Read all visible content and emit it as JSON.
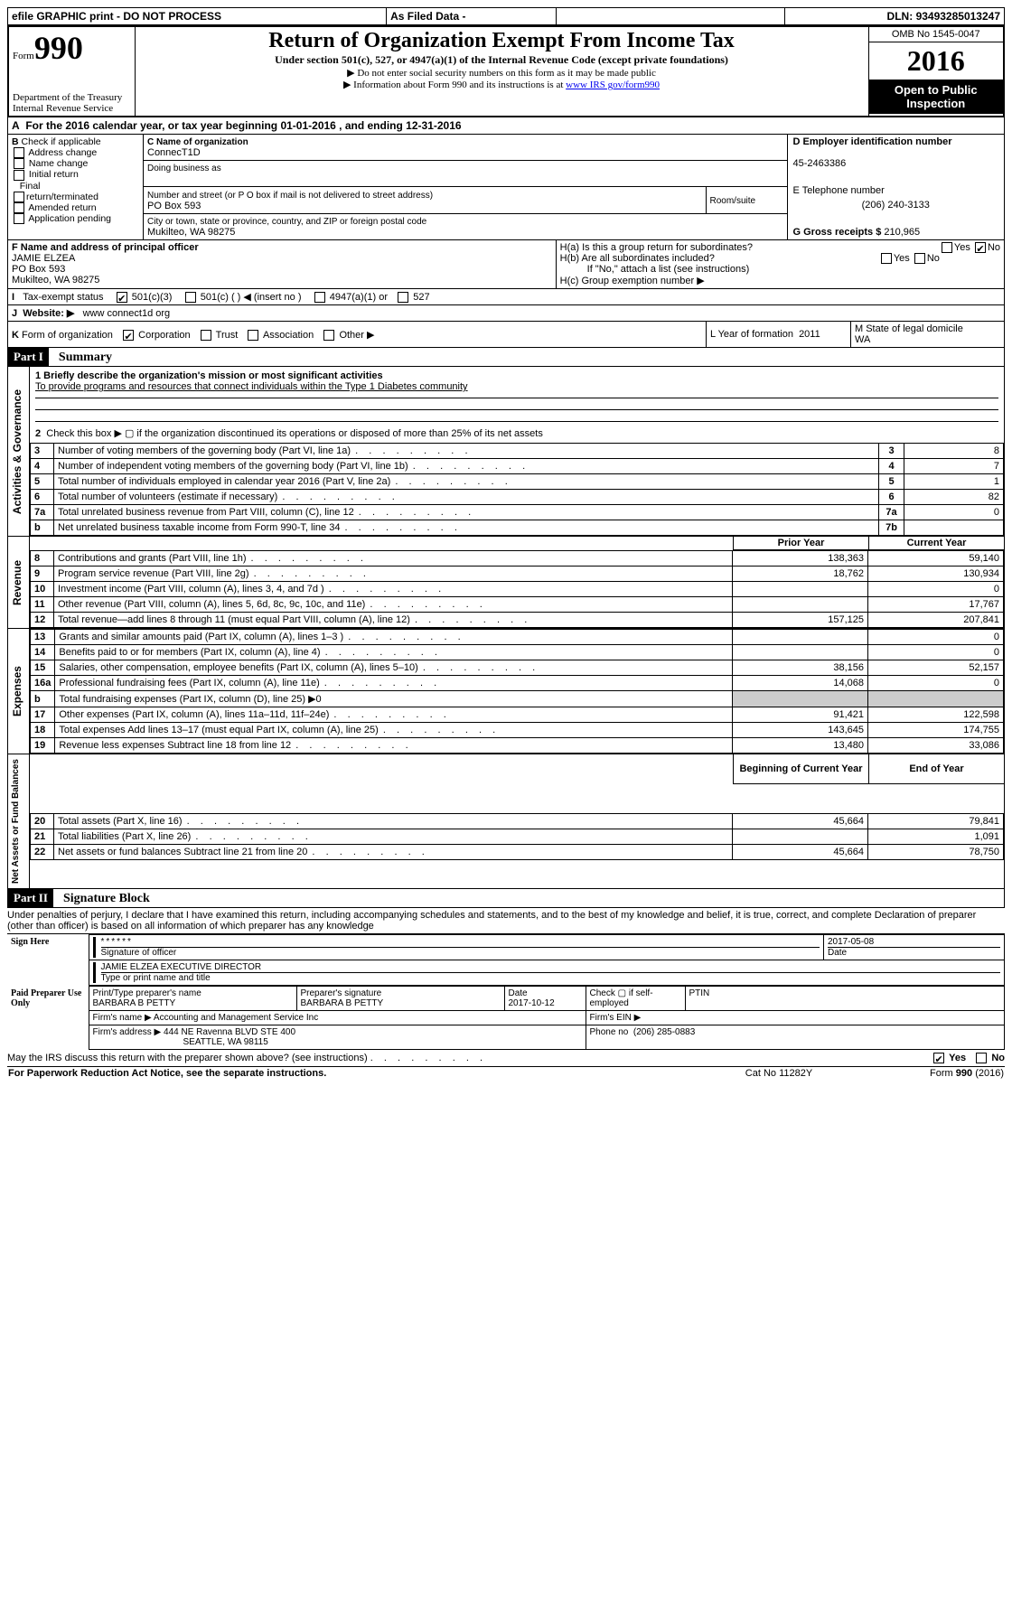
{
  "topbar": {
    "efile": "efile GRAPHIC print - DO NOT PROCESS",
    "asfiled": "As Filed Data -",
    "dln_label": "DLN:",
    "dln": "93493285013247"
  },
  "header": {
    "form_label": "Form",
    "form_no": "990",
    "dept1": "Department of the Treasury",
    "dept2": "Internal Revenue Service",
    "title": "Return of Organization Exempt From Income Tax",
    "sub": "Under section 501(c), 527, or 4947(a)(1) of the Internal Revenue Code (except private foundations)",
    "note1": "▶ Do not enter social security numbers on this form as it may be made public",
    "note2_pre": "▶ Information about Form 990 and its instructions is at ",
    "note2_link": "www IRS gov/form990",
    "omb": "OMB No 1545-0047",
    "year": "2016",
    "open": "Open to Public Inspection"
  },
  "A": {
    "text": "For the 2016 calendar year, or tax year beginning 01-01-2016   , and ending 12-31-2016"
  },
  "B": {
    "hdr": "Check if applicable",
    "opts": [
      "Address change",
      "Name change",
      "Initial return",
      "Final return/terminated",
      "Amended return",
      "Application pending"
    ]
  },
  "C": {
    "name_lbl": "C Name of organization",
    "name": "ConnecT1D",
    "dba_lbl": "Doing business as",
    "dba": "",
    "addr_lbl": "Number and street (or P O  box if mail is not delivered to street address)",
    "room_lbl": "Room/suite",
    "addr": "PO Box 593",
    "city_lbl": "City or town, state or province, country, and ZIP or foreign postal code",
    "city": "Mukilteo, WA  98275"
  },
  "D": {
    "lbl": "D Employer identification number",
    "val": "45-2463386"
  },
  "E": {
    "lbl": "E Telephone number",
    "val": "(206) 240-3133"
  },
  "G": {
    "lbl": "G Gross receipts $",
    "val": "210,965"
  },
  "F": {
    "lbl": "F   Name and address of principal officer",
    "name": "JAMIE ELZEA",
    "addr1": "PO Box 593",
    "addr2": "Mukilteo, WA  98275"
  },
  "H": {
    "a": "H(a)  Is this a group return for subordinates?",
    "a_yes": "Yes",
    "a_no": "No",
    "a_checked": "no",
    "b": "H(b) Are all subordinates included?",
    "b_yes": "Yes",
    "b_no": "No",
    "b_note": "If \"No,\" attach a list  (see instructions)",
    "c": "H(c) Group exemption number ▶"
  },
  "I": {
    "lbl": "Tax-exempt status",
    "opt1": "501(c)(3)",
    "opt1_checked": true,
    "opt2": "501(c) (   ) ◀ (insert no )",
    "opt3": "4947(a)(1) or",
    "opt4": "527"
  },
  "J": {
    "lbl": "Website: ▶",
    "val": "www connect1d org"
  },
  "K": {
    "lbl": "Form of organization",
    "corp": "Corporation",
    "corp_checked": true,
    "trust": "Trust",
    "assoc": "Association",
    "other": "Other ▶"
  },
  "L": {
    "lbl": "L Year of formation",
    "val": "2011"
  },
  "M": {
    "lbl": "M State of legal domicile",
    "val": "WA"
  },
  "part1": {
    "hdr": "Part I",
    "title": "Summary",
    "mission_lbl": "1 Briefly describe the organization's mission or most significant activities",
    "mission": "To provide programs and resources that connect individuals within the Type 1 Diabetes community",
    "line2": "Check this box ▶ ▢ if the organization discontinued its operations or disposed of more than 25% of its net assets",
    "sections": {
      "ag": "Activities & Governance",
      "rev": "Revenue",
      "exp": "Expenses",
      "na": "Net Assets or Fund Balances"
    },
    "rows_ag": [
      {
        "n": "3",
        "d": "Number of voting members of the governing body (Part VI, line 1a)",
        "box": "3",
        "v": "8"
      },
      {
        "n": "4",
        "d": "Number of independent voting members of the governing body (Part VI, line 1b)",
        "box": "4",
        "v": "7"
      },
      {
        "n": "5",
        "d": "Total number of individuals employed in calendar year 2016 (Part V, line 2a)",
        "box": "5",
        "v": "1"
      },
      {
        "n": "6",
        "d": "Total number of volunteers (estimate if necessary)",
        "box": "6",
        "v": "82"
      },
      {
        "n": "7a",
        "d": "Total unrelated business revenue from Part VIII, column (C), line 12",
        "box": "7a",
        "v": "0"
      },
      {
        "n": "b",
        "d": "Net unrelated business taxable income from Form 990-T, line 34",
        "box": "7b",
        "v": ""
      }
    ],
    "col_prior": "Prior Year",
    "col_curr": "Current Year",
    "rows_rev": [
      {
        "n": "8",
        "d": "Contributions and grants (Part VIII, line 1h)",
        "p": "138,363",
        "c": "59,140"
      },
      {
        "n": "9",
        "d": "Program service revenue (Part VIII, line 2g)",
        "p": "18,762",
        "c": "130,934"
      },
      {
        "n": "10",
        "d": "Investment income (Part VIII, column (A), lines 3, 4, and 7d )",
        "p": "",
        "c": "0"
      },
      {
        "n": "11",
        "d": "Other revenue (Part VIII, column (A), lines 5, 6d, 8c, 9c, 10c, and 11e)",
        "p": "",
        "c": "17,767"
      },
      {
        "n": "12",
        "d": "Total revenue—add lines 8 through 11 (must equal Part VIII, column (A), line 12)",
        "p": "157,125",
        "c": "207,841"
      }
    ],
    "rows_exp": [
      {
        "n": "13",
        "d": "Grants and similar amounts paid (Part IX, column (A), lines 1–3 )",
        "p": "",
        "c": "0"
      },
      {
        "n": "14",
        "d": "Benefits paid to or for members (Part IX, column (A), line 4)",
        "p": "",
        "c": "0"
      },
      {
        "n": "15",
        "d": "Salaries, other compensation, employee benefits (Part IX, column (A), lines 5–10)",
        "p": "38,156",
        "c": "52,157"
      },
      {
        "n": "16a",
        "d": "Professional fundraising fees (Part IX, column (A), line 11e)",
        "p": "14,068",
        "c": "0"
      },
      {
        "n": "b",
        "d": "Total fundraising expenses (Part IX, column (D), line 25) ▶0",
        "p": "",
        "c": "",
        "gray": true
      },
      {
        "n": "17",
        "d": "Other expenses (Part IX, column (A), lines 11a–11d, 11f–24e)",
        "p": "91,421",
        "c": "122,598"
      },
      {
        "n": "18",
        "d": "Total expenses  Add lines 13–17 (must equal Part IX, column (A), line 25)",
        "p": "143,645",
        "c": "174,755"
      },
      {
        "n": "19",
        "d": "Revenue less expenses  Subtract line 18 from line 12",
        "p": "13,480",
        "c": "33,086"
      }
    ],
    "col_beg": "Beginning of Current Year",
    "col_end": "End of Year",
    "rows_na": [
      {
        "n": "20",
        "d": "Total assets (Part X, line 16)",
        "p": "45,664",
        "c": "79,841"
      },
      {
        "n": "21",
        "d": "Total liabilities (Part X, line 26)",
        "p": "",
        "c": "1,091"
      },
      {
        "n": "22",
        "d": "Net assets or fund balances  Subtract line 21 from line 20",
        "p": "45,664",
        "c": "78,750"
      }
    ]
  },
  "part2": {
    "hdr": "Part II",
    "title": "Signature Block",
    "decl": "Under penalties of perjury, I declare that I have examined this return, including accompanying schedules and statements, and to the best of my knowledge and belief, it is true, correct, and complete  Declaration of preparer (other than officer) is based on all information of which preparer has any knowledge",
    "sign_here": "Sign Here",
    "stars": "******",
    "sig_of_officer": "Signature of officer",
    "sig_date": "2017-05-08",
    "date_lbl": "Date",
    "name_title": "JAMIE ELZEA EXECUTIVE DIRECTOR",
    "type_name": "Type or print name and title",
    "paid": "Paid Preparer Use Only",
    "prep_name_lbl": "Print/Type preparer's name",
    "prep_name": "BARBARA B PETTY",
    "prep_sig_lbl": "Preparer's signature",
    "prep_sig": "BARBARA B PETTY",
    "prep_date_lbl": "Date",
    "prep_date": "2017-10-12",
    "check_lbl": "Check ▢ if self-employed",
    "ptin_lbl": "PTIN",
    "firm_name_lbl": "Firm's name    ▶",
    "firm_name": "Accounting and Management Service Inc",
    "firm_ein_lbl": "Firm's EIN ▶",
    "firm_addr_lbl": "Firm's address ▶",
    "firm_addr1": "444 NE Ravenna BLVD STE 400",
    "firm_addr2": "SEATTLE, WA  98115",
    "phone_lbl": "Phone no",
    "phone": "(206) 285-0883",
    "discuss": "May the IRS discuss this return with the preparer shown above? (see instructions)",
    "yes": "Yes",
    "no": "No",
    "discuss_checked": "yes"
  },
  "footer": {
    "left": "For Paperwork Reduction Act Notice, see the separate instructions.",
    "mid": "Cat  No  11282Y",
    "right_pre": "Form ",
    "right_bold": "990",
    "right_post": " (2016)"
  }
}
